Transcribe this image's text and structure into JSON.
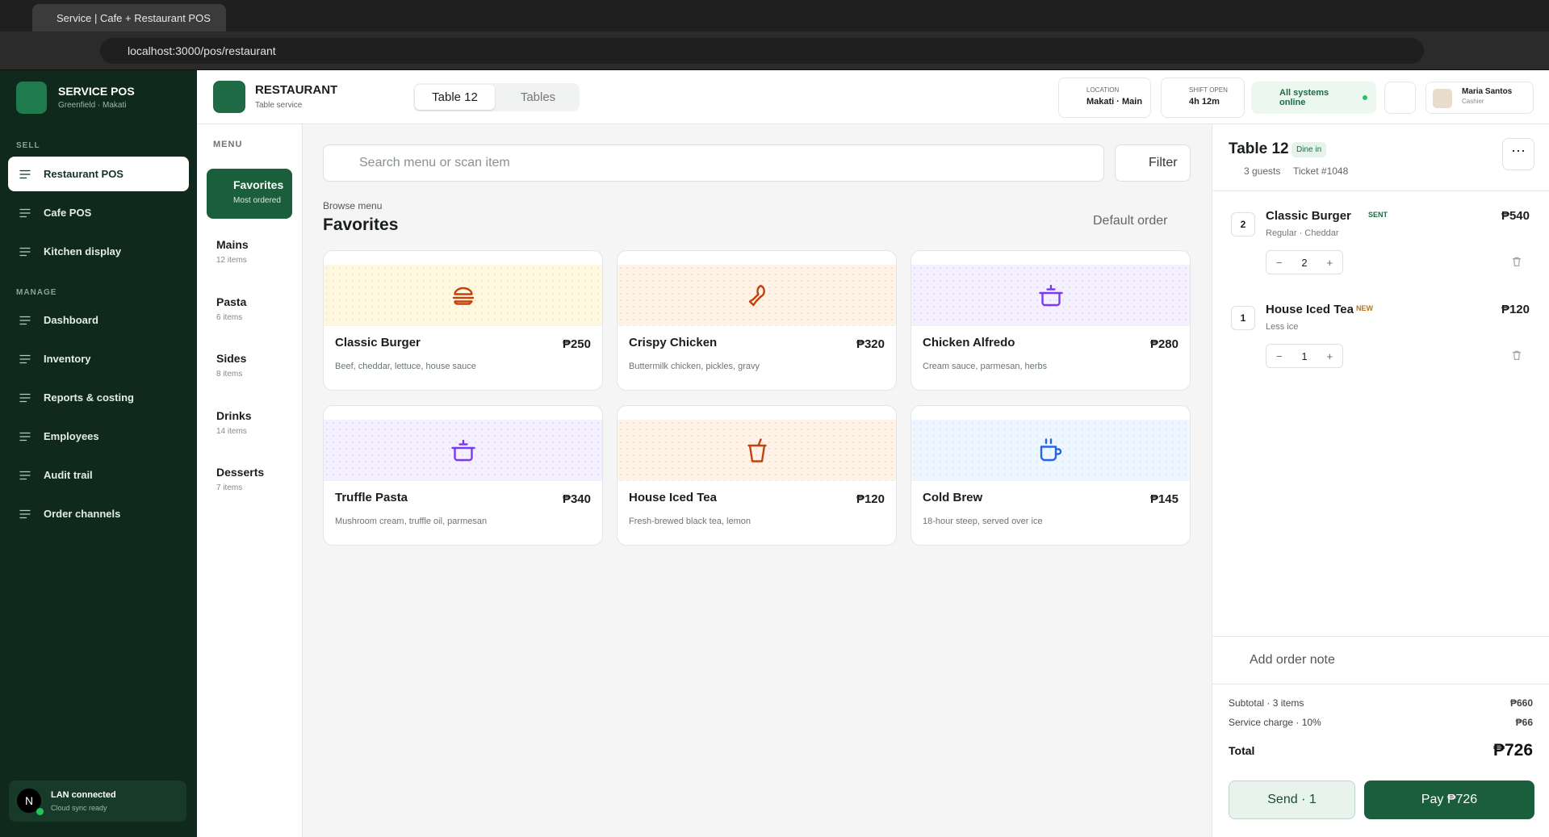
{
  "browser": {
    "tab_title": "Service | Cafe + Restaurant POS",
    "url": "localhost:3000/pos/restaurant"
  },
  "sidebar": {
    "brand": {
      "name": "SERVICE POS",
      "subtitle": "Greenfield · Makati"
    },
    "sections": [
      {
        "label": "SELL",
        "items": [
          "Restaurant POS",
          "Cafe POS",
          "Kitchen display"
        ]
      },
      {
        "label": "MANAGE",
        "items": [
          "Dashboard",
          "Inventory",
          "Reports & costing",
          "Employees",
          "Audit trail",
          "Order channels"
        ]
      }
    ],
    "status": {
      "avatar": "N",
      "title": "LAN connected",
      "subtitle": "Cloud sync ready"
    }
  },
  "header": {
    "title": "RESTAURANT",
    "subtitle": "Table service",
    "tabs": [
      "Table 12",
      "Tables"
    ],
    "location": {
      "label": "LOCATION",
      "value": "Makati · Main"
    },
    "shift": {
      "label": "SHIFT OPEN",
      "value": "4h 12m"
    },
    "status": "All systems online",
    "user": {
      "name": "Maria Santos",
      "role": "Cashier"
    }
  },
  "menu": {
    "label": "MENU",
    "categories": [
      {
        "name": "Favorites",
        "detail": "Most ordered"
      },
      {
        "name": "Mains",
        "detail": "12 items"
      },
      {
        "name": "Pasta",
        "detail": "6 items"
      },
      {
        "name": "Sides",
        "detail": "8 items"
      },
      {
        "name": "Drinks",
        "detail": "14 items"
      },
      {
        "name": "Desserts",
        "detail": "7 items"
      }
    ]
  },
  "search": {
    "placeholder": "Search menu or scan item",
    "filter": "Filter"
  },
  "browse": {
    "eyebrow": "Browse menu",
    "title": "Favorites",
    "sort": "Default order"
  },
  "items": [
    {
      "name": "Classic Burger",
      "price": "₱250",
      "description": "Beef, cheddar, lettuce, house sauce"
    },
    {
      "name": "Crispy Chicken",
      "price": "₱320",
      "description": "Buttermilk chicken, pickles, gravy"
    },
    {
      "name": "Chicken Alfredo",
      "price": "₱280",
      "description": "Cream sauce, parmesan, herbs"
    },
    {
      "name": "Truffle Pasta",
      "price": "₱340",
      "description": "Mushroom cream, truffle oil, parmesan"
    },
    {
      "name": "House Iced Tea",
      "price": "₱120",
      "description": "Fresh-brewed black tea, lemon"
    },
    {
      "name": "Cold Brew",
      "price": "₱145",
      "description": "18-hour steep, served over ice"
    }
  ],
  "order": {
    "title": "Table 12",
    "badge": "Dine in",
    "guests": "3 guests",
    "ticket": "Ticket #1048",
    "lines": [
      {
        "count": "2",
        "name": "Classic Burger",
        "status": "SENT",
        "detail": "Regular · Cheddar",
        "price": "₱540",
        "qty": "2"
      },
      {
        "count": "1",
        "name": "House Iced Tea",
        "status": "NEW",
        "detail": "Less ice",
        "price": "₱120",
        "qty": "1"
      }
    ],
    "note": "Add order note",
    "subtotal": {
      "label": "Subtotal · 3 items",
      "value": "₱660"
    },
    "service": {
      "label": "Service charge · 10%",
      "value": "₱66"
    },
    "total": {
      "label": "Total",
      "value": "₱726"
    },
    "send": "Send · 1",
    "pay": "Pay ₱726"
  }
}
